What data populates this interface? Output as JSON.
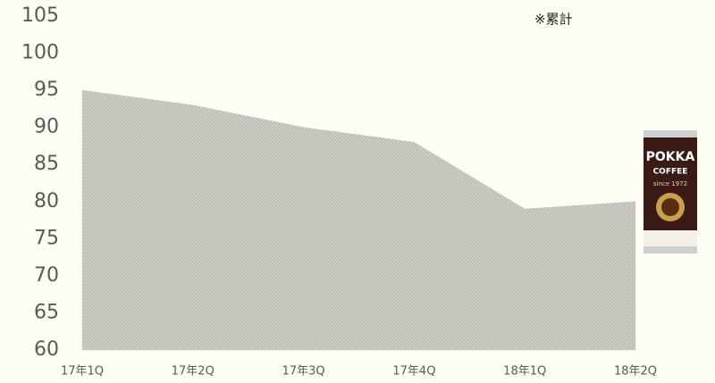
{
  "chart_data": {
    "type": "area",
    "categories": [
      "17年1Q",
      "17年2Q",
      "17年3Q",
      "17年4Q",
      "18年1Q",
      "18年2Q"
    ],
    "values": [
      95,
      93,
      90,
      88,
      79,
      80
    ],
    "color": "#c6c6bd",
    "ylim": [
      60,
      105
    ],
    "yticks": [
      60,
      65,
      70,
      75,
      80,
      85,
      90,
      95,
      100,
      105
    ],
    "grid": false,
    "annotation": "※累計",
    "product_texts": [
      "POKKA",
      "COFFEE",
      "since 1972"
    ]
  }
}
